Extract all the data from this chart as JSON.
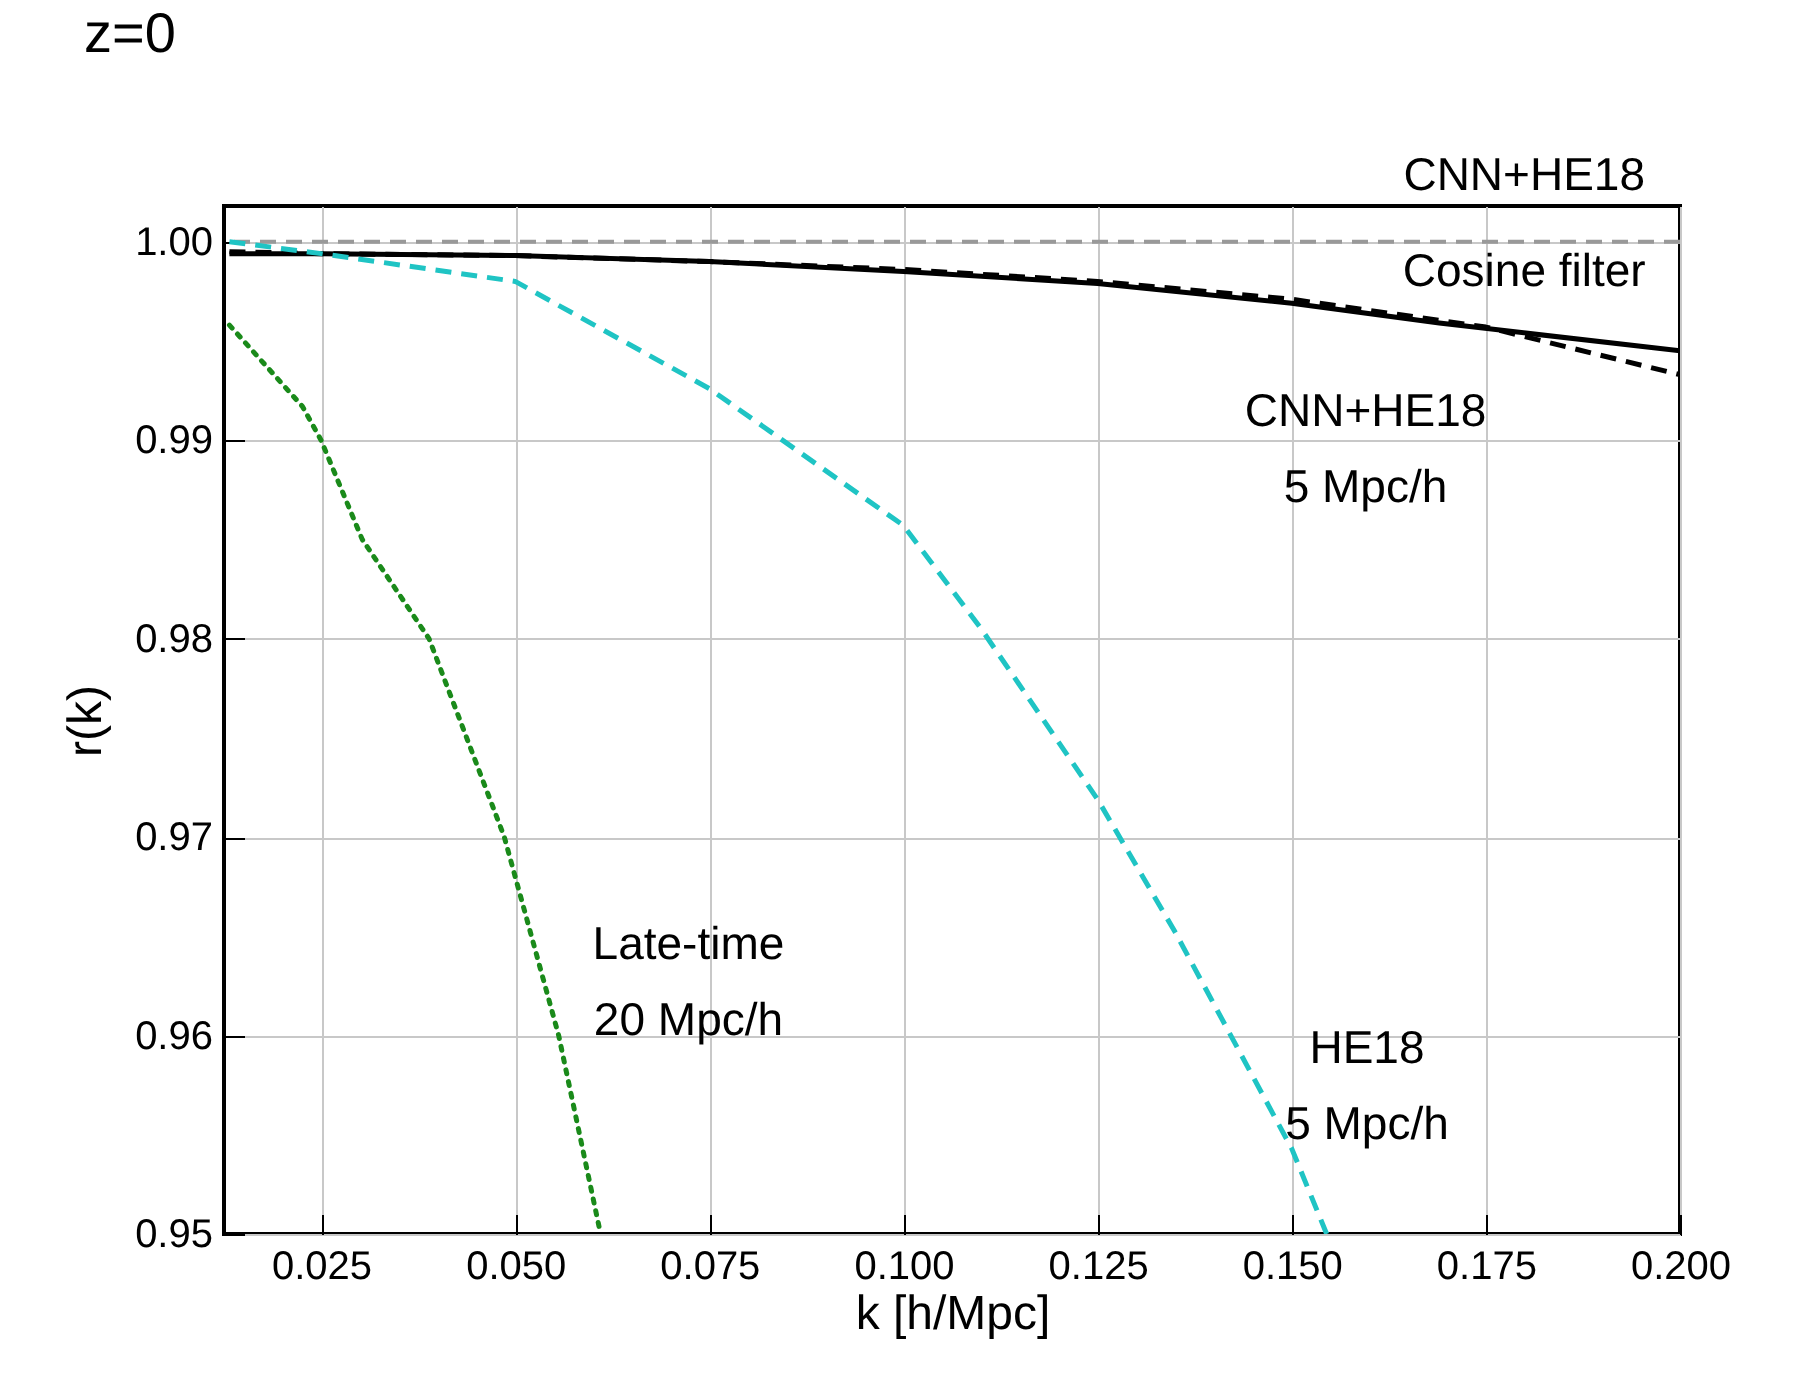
{
  "chart_data": {
    "type": "line",
    "title": "z=0",
    "xlabel": "k [h/Mpc]",
    "ylabel": "r(k)",
    "xlim": [
      0.0125,
      0.2
    ],
    "ylim": [
      0.95,
      1.0018
    ],
    "xticks": [
      0.025,
      {
        "value": 0.05,
        "label": "0.050"
      },
      0.075,
      {
        "value": 0.1,
        "label": "0.100"
      },
      0.125,
      {
        "value": 0.15,
        "label": "0.150"
      },
      0.175,
      {
        "value": 0.2,
        "label": "0.200"
      }
    ],
    "yticks": [
      0.95,
      0.96,
      0.97,
      0.98,
      0.99,
      {
        "value": 1.0,
        "label": "1.00"
      }
    ],
    "grid": true,
    "marker": "none",
    "series": [
      {
        "color": "#000000",
        "line_style": "solid",
        "x": [
          0.0132,
          0.025,
          0.05,
          0.075,
          0.1,
          0.125,
          0.15,
          0.169,
          0.2
        ],
        "values": [
          0.9994,
          0.9994,
          0.9993,
          0.999,
          0.9985,
          0.9979,
          0.9969,
          0.9959,
          0.9945
        ]
      },
      {
        "color": "#000000",
        "line_style": "dashed",
        "x": [
          0.0132,
          0.025,
          0.05,
          0.075,
          0.1,
          0.125,
          0.15,
          0.175,
          0.2
        ],
        "values": [
          0.9995,
          0.9994,
          0.9993,
          0.999,
          0.9986,
          0.998,
          0.9971,
          0.9957,
          0.9933
        ]
      },
      {
        "color": "#1fc4c4",
        "line_style": "dashed",
        "x": [
          0.0132,
          0.025,
          0.05,
          0.075,
          0.1,
          0.11,
          0.125,
          0.135,
          0.15,
          0.1545
        ],
        "values": [
          1.0,
          0.9994,
          0.998,
          0.9926,
          0.9857,
          0.9805,
          0.9719,
          0.9652,
          0.9543,
          0.95
        ]
      },
      {
        "color": "#1a8a1a",
        "line_style": "dotted",
        "x": [
          0.0132,
          0.0226,
          0.025,
          0.0303,
          0.0389,
          0.0486,
          0.0556,
          0.061
        ],
        "values": [
          0.9958,
          0.9917,
          0.99,
          0.985,
          0.98,
          0.97,
          0.96,
          0.95
        ]
      }
    ],
    "ref_lines": [
      {
        "axis": "y",
        "value": 1.0,
        "color": "#999999",
        "line_style": "dashed"
      }
    ],
    "annotations": [
      "CNN+HE18\nCosine filter",
      "CNN+HE18\n5 Mpc/h",
      "Late-time\n20 Mpc/h",
      "HE18\n5 Mpc/h"
    ]
  }
}
